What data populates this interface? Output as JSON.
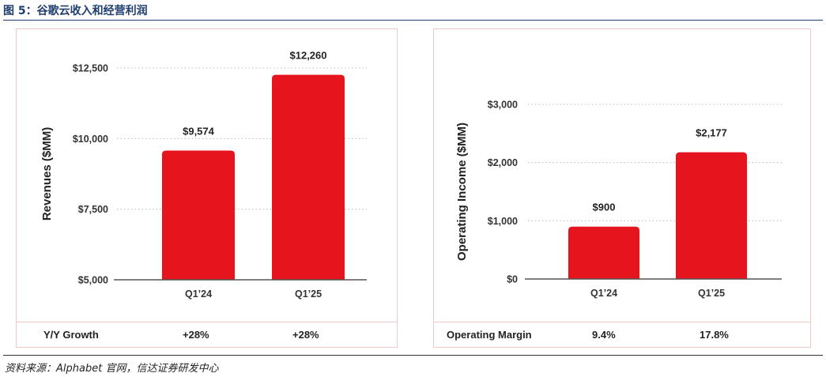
{
  "figure_title": "图 5：谷歌云收入和经营利润",
  "source": "资料来源：Alphabet 官网，信达证券研发中心",
  "colors": {
    "bar": "#e5141d",
    "grid": "#bbbbbb",
    "border": "#f0c8c6",
    "title": "#1f3e6e"
  },
  "chart_data": [
    {
      "type": "bar",
      "ylabel": "Revenues  ($MM)",
      "categories": [
        "Q1’24",
        "Q1’25"
      ],
      "values": [
        9574,
        12260
      ],
      "value_labels": [
        "$9,574",
        "$12,260"
      ],
      "ylim": [
        5000,
        12500
      ],
      "yticks": [
        5000,
        7500,
        10000,
        12500
      ],
      "ytick_labels": [
        "$5,000",
        "$7,500",
        "$10,000",
        "$12,500"
      ],
      "grid": true,
      "footer": {
        "label": "Y/Y Growth",
        "values": [
          "+28%",
          "+28%"
        ]
      }
    },
    {
      "type": "bar",
      "ylabel": "Operating Income  ($MM)",
      "categories": [
        "Q1’24",
        "Q1’25"
      ],
      "values": [
        900,
        2177
      ],
      "value_labels": [
        "$900",
        "$2,177"
      ],
      "ylim": [
        0,
        3000
      ],
      "yticks": [
        0,
        1000,
        2000,
        3000
      ],
      "ytick_labels": [
        "$0",
        "$1,000",
        "$2,000",
        "$3,000"
      ],
      "grid": true,
      "footer": {
        "label": "Operating Margin",
        "values": [
          "9.4%",
          "17.8%"
        ]
      }
    }
  ]
}
